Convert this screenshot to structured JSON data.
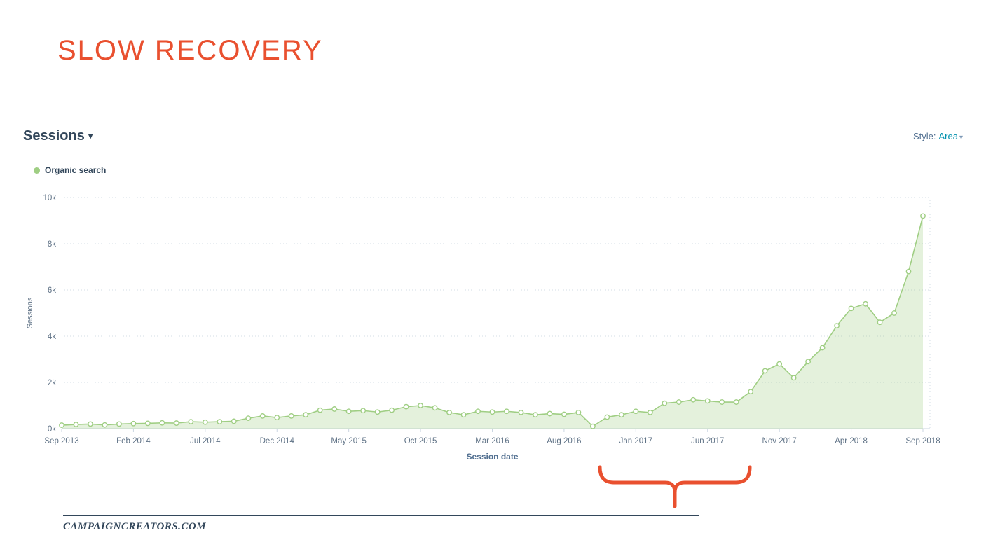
{
  "slide": {
    "title": "SLOW RECOVERY",
    "footer": "CAMPAIGNCREATORS.COM"
  },
  "widget": {
    "metric_label": "Sessions",
    "style_label": "Style:",
    "style_value": "Area",
    "legend_label": "Organic search",
    "x_axis_title": "Session date"
  },
  "colors": {
    "title_orange": "#e9502f",
    "brace_orange": "#e9502f",
    "series_green": "#9fce83",
    "heading_slate": "#33475b",
    "style_teal": "#0091ae",
    "grid": "#d3dce6",
    "axis_line": "#cbd6e2",
    "axis_text": "#5f7286"
  },
  "chart_data": {
    "type": "area",
    "title": "Sessions",
    "series_name": "Organic search",
    "ylabel": "Sessions",
    "xlabel": "Session date",
    "ylim": [
      0,
      10000
    ],
    "y_ticks": [
      "0k",
      "2k",
      "4k",
      "6k",
      "8k",
      "10k"
    ],
    "x_tick_labels": [
      "Sep 2013",
      "Feb 2014",
      "Jul 2014",
      "Dec 2014",
      "May 2015",
      "Oct 2015",
      "Mar 2016",
      "Aug 2016",
      "Jan 2017",
      "Jun 2017",
      "Nov 2017",
      "Apr 2018",
      "Sep 2018"
    ],
    "x_tick_every": 5,
    "x_range": "Sep 2013 to Sep 2018, monthly points",
    "values": [
      150,
      180,
      200,
      160,
      200,
      220,
      230,
      250,
      240,
      300,
      280,
      300,
      320,
      450,
      550,
      480,
      550,
      600,
      800,
      850,
      750,
      780,
      720,
      800,
      950,
      1000,
      900,
      700,
      600,
      750,
      720,
      750,
      700,
      600,
      650,
      620,
      700,
      100,
      500,
      600,
      750,
      700,
      1100,
      1150,
      1250,
      1200,
      1150,
      1150,
      1600,
      2500,
      2800,
      2200,
      2900,
      3500,
      4450,
      5200,
      5400,
      4600,
      5000,
      6800,
      9200
    ],
    "legend_position": "top-left",
    "grid": "horizontal-dotted"
  }
}
